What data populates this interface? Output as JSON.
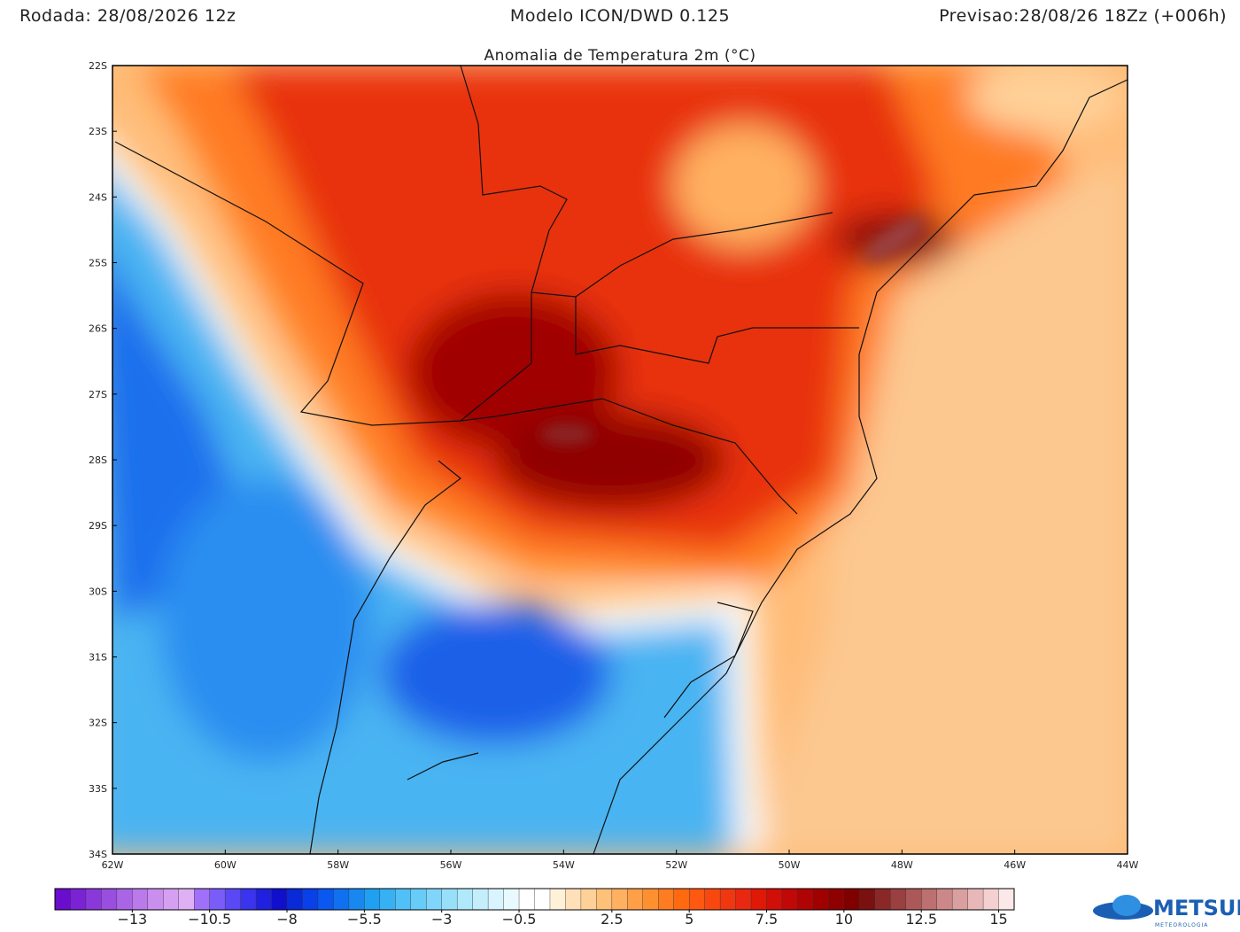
{
  "header": {
    "run": "Rodada: 28/08/2026 12z",
    "model": "Modelo ICON/DWD 0.125",
    "forecast": "Previsao:28/08/26 18Zz (+006h)",
    "title": "Anomalia de Temperatura 2m (°C)"
  },
  "map": {
    "lon_range": [
      -62,
      -44
    ],
    "lat_range": [
      -22,
      -34
    ],
    "lat_ticks": [
      {
        "value": -22,
        "label": "22S"
      },
      {
        "value": -23,
        "label": "23S"
      },
      {
        "value": -24,
        "label": "24S"
      },
      {
        "value": -25,
        "label": "25S"
      },
      {
        "value": -26,
        "label": "26S"
      },
      {
        "value": -27,
        "label": "27S"
      },
      {
        "value": -28,
        "label": "28S"
      },
      {
        "value": -29,
        "label": "29S"
      },
      {
        "value": -30,
        "label": "30S"
      },
      {
        "value": -31,
        "label": "31S"
      },
      {
        "value": -32,
        "label": "32S"
      },
      {
        "value": -33,
        "label": "33S"
      },
      {
        "value": -34,
        "label": "34S"
      }
    ],
    "lon_ticks": [
      {
        "value": -62,
        "label": "62W"
      },
      {
        "value": -60,
        "label": "60W"
      },
      {
        "value": -58,
        "label": "58W"
      },
      {
        "value": -56,
        "label": "56W"
      },
      {
        "value": -54,
        "label": "54W"
      },
      {
        "value": -52,
        "label": "52W"
      },
      {
        "value": -50,
        "label": "50W"
      },
      {
        "value": -48,
        "label": "48W"
      },
      {
        "value": -46,
        "label": "46W"
      },
      {
        "value": -44,
        "label": "44W"
      }
    ]
  },
  "colorbar": {
    "range": [
      -15.5,
      15.5
    ],
    "colors": [
      "#6a0dcc",
      "#7a22d4",
      "#8a38da",
      "#9a4ee0",
      "#aa64e6",
      "#ba7aea",
      "#c98eee",
      "#d6a0f2",
      "#e0b0f4",
      "#a070f8",
      "#7a5cf8",
      "#5a48f4",
      "#3a34ee",
      "#2020e0",
      "#1010cc",
      "#0a2ad8",
      "#0a40e8",
      "#0a58f0",
      "#1070f0",
      "#1888f0",
      "#20a0f0",
      "#38b0f4",
      "#50c0f6",
      "#68ccf8",
      "#80d6fa",
      "#98e0fa",
      "#b0e8fc",
      "#c4eefc",
      "#d8f4fe",
      "#e8faff",
      "#ffffff",
      "#ffffff",
      "#fff0d8",
      "#ffe0b8",
      "#ffd098",
      "#ffc078",
      "#ffb060",
      "#ffa048",
      "#ff9030",
      "#ff7c20",
      "#ff6a10",
      "#ff5810",
      "#f84810",
      "#f03810",
      "#e82810",
      "#e01808",
      "#d01008",
      "#c00808",
      "#b00404",
      "#a00000",
      "#900000",
      "#800000",
      "#7a1010",
      "#8a2828",
      "#9a4040",
      "#ac5858",
      "#bc7070",
      "#cc8888",
      "#daa0a0",
      "#e8b8b8",
      "#f4d0d0",
      "#fce8e8"
    ],
    "ticks": [
      {
        "value": -13,
        "label": "−13"
      },
      {
        "value": -10.5,
        "label": "−10.5"
      },
      {
        "value": -8,
        "label": "−8"
      },
      {
        "value": -5.5,
        "label": "−5.5"
      },
      {
        "value": -3,
        "label": "−3"
      },
      {
        "value": -0.5,
        "label": "−0.5"
      },
      2.5,
      5,
      7.5,
      10,
      12.5,
      15
    ]
  },
  "logo": {
    "name": "METSUL",
    "subtitle": "METEOROLOGIA"
  }
}
